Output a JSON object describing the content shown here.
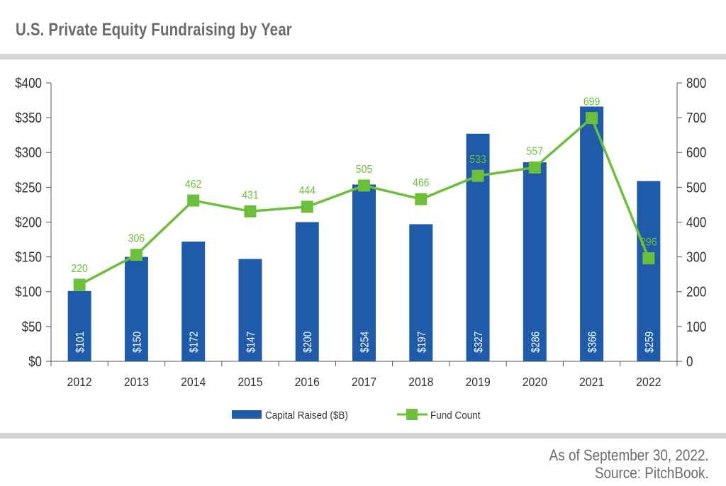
{
  "header": {
    "title": "U.S. Private Equity Fundraising by Year"
  },
  "footer": {
    "asof": "As of September 30, 2022.",
    "source": "Source: PitchBook."
  },
  "chart_data": {
    "type": "bar",
    "title": "U.S. Private Equity Fundraising by Year",
    "categories": [
      "2012",
      "2013",
      "2014",
      "2015",
      "2016",
      "2017",
      "2018",
      "2019",
      "2020",
      "2021",
      "2022"
    ],
    "series": [
      {
        "name": "Capital Raised ($B)",
        "kind": "bar",
        "axis": "left",
        "color": "#1f5ba8",
        "values": [
          101,
          150,
          172,
          147,
          200,
          254,
          197,
          327,
          286,
          366,
          259
        ],
        "labels": [
          "$101",
          "$150",
          "$172",
          "$147",
          "$200",
          "$254",
          "$197",
          "$327",
          "$286",
          "$366",
          "$259"
        ]
      },
      {
        "name": "Fund Count",
        "kind": "line",
        "axis": "right",
        "color": "#6cbf3a",
        "values": [
          220,
          306,
          462,
          431,
          444,
          505,
          466,
          533,
          557,
          699,
          296
        ],
        "labels": [
          "220",
          "306",
          "462",
          "431",
          "444",
          "505",
          "466",
          "533",
          "557",
          "699",
          "296"
        ]
      }
    ],
    "y_left": {
      "ylim": [
        0,
        400
      ],
      "ticks": [
        "$0",
        "$50",
        "$100",
        "$150",
        "$200",
        "$250",
        "$300",
        "$350",
        "$400"
      ]
    },
    "y_right": {
      "ylim": [
        0,
        800
      ],
      "ticks": [
        "0",
        "100",
        "200",
        "300",
        "400",
        "500",
        "600",
        "700",
        "800"
      ]
    },
    "grid": false,
    "legend": "bottom-center"
  }
}
